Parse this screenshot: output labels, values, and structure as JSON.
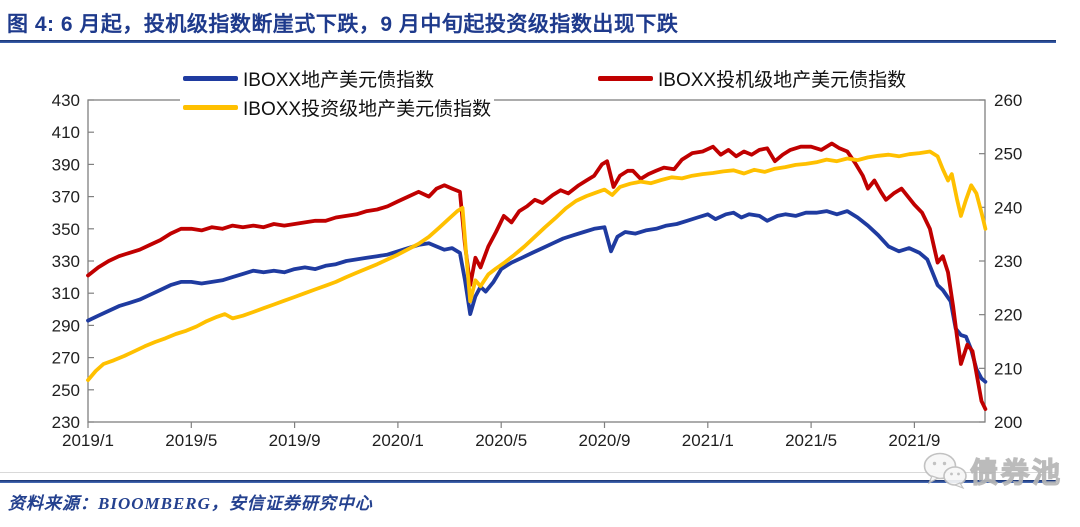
{
  "figure": {
    "title": "图 4: 6 月起，投机级指数断崖式下跌，9 月中旬起投资级指数出现下跌",
    "source": "资料来源：BIOOMBERG，安信证券研究中心",
    "watermark": "债券池"
  },
  "colors": {
    "accent_navy": "#1e3a8c",
    "line_blue": "#1f3ba0",
    "line_red": "#c00000",
    "line_yellow": "#ffc000",
    "axis_frame": "#808080",
    "axis_text": "#1f1f1f"
  },
  "chart_data": {
    "type": "line",
    "title": "",
    "xlabel": "",
    "ylabel_left": "",
    "ylabel_right": "",
    "legend_position": "top",
    "grid": false,
    "x_unit": "months since 2019/1 (x ticks every 4 months)",
    "x_ticks": [
      "2019/1",
      "2019/5",
      "2019/9",
      "2020/1",
      "2020/5",
      "2020/9",
      "2021/1",
      "2021/5",
      "2021/9"
    ],
    "left_axis": {
      "min": 230,
      "max": 430,
      "step": 20,
      "ticks": [
        430,
        410,
        390,
        370,
        350,
        330,
        310,
        290,
        270,
        250,
        230
      ]
    },
    "right_axis": {
      "min": 200,
      "max": 260,
      "step": 10,
      "ticks": [
        260,
        250,
        240,
        230,
        220,
        210,
        200
      ]
    },
    "series": [
      {
        "name": "IBOXX地产美元债指数",
        "color": "#1f3ba0",
        "axis": "left",
        "points": [
          [
            0,
            293
          ],
          [
            0.4,
            296
          ],
          [
            0.8,
            299
          ],
          [
            1.2,
            302
          ],
          [
            1.6,
            304
          ],
          [
            2,
            306
          ],
          [
            2.4,
            309
          ],
          [
            2.8,
            312
          ],
          [
            3.2,
            315
          ],
          [
            3.6,
            317
          ],
          [
            4,
            317
          ],
          [
            4.4,
            316
          ],
          [
            4.8,
            317
          ],
          [
            5.2,
            318
          ],
          [
            5.6,
            320
          ],
          [
            6,
            322
          ],
          [
            6.4,
            324
          ],
          [
            6.8,
            323
          ],
          [
            7.2,
            324
          ],
          [
            7.6,
            323
          ],
          [
            8,
            325
          ],
          [
            8.4,
            326
          ],
          [
            8.8,
            325
          ],
          [
            9.2,
            327
          ],
          [
            9.6,
            328
          ],
          [
            10,
            330
          ],
          [
            10.4,
            331
          ],
          [
            10.8,
            332
          ],
          [
            11.2,
            333
          ],
          [
            11.6,
            334
          ],
          [
            12,
            336
          ],
          [
            12.4,
            338
          ],
          [
            12.8,
            340
          ],
          [
            13.2,
            341
          ],
          [
            13.5,
            339
          ],
          [
            13.8,
            337
          ],
          [
            14.1,
            338
          ],
          [
            14.4,
            335
          ],
          [
            14.6,
            318
          ],
          [
            14.8,
            297
          ],
          [
            15,
            308
          ],
          [
            15.2,
            314
          ],
          [
            15.4,
            311
          ],
          [
            15.7,
            317
          ],
          [
            16,
            325
          ],
          [
            16.4,
            329
          ],
          [
            16.8,
            332
          ],
          [
            17.2,
            335
          ],
          [
            17.6,
            338
          ],
          [
            18,
            341
          ],
          [
            18.4,
            344
          ],
          [
            18.8,
            346
          ],
          [
            19.2,
            348
          ],
          [
            19.6,
            350
          ],
          [
            20,
            351
          ],
          [
            20.25,
            336
          ],
          [
            20.5,
            345
          ],
          [
            20.8,
            348
          ],
          [
            21.2,
            347
          ],
          [
            21.6,
            349
          ],
          [
            22,
            350
          ],
          [
            22.4,
            352
          ],
          [
            22.8,
            353
          ],
          [
            23.2,
            355
          ],
          [
            23.6,
            357
          ],
          [
            24,
            359
          ],
          [
            24.3,
            356
          ],
          [
            24.7,
            359
          ],
          [
            25,
            360
          ],
          [
            25.3,
            357
          ],
          [
            25.6,
            359
          ],
          [
            26,
            358
          ],
          [
            26.3,
            355
          ],
          [
            26.7,
            358
          ],
          [
            27,
            359
          ],
          [
            27.4,
            358
          ],
          [
            27.8,
            360
          ],
          [
            28.2,
            360
          ],
          [
            28.6,
            361
          ],
          [
            29,
            359
          ],
          [
            29.4,
            361
          ],
          [
            29.8,
            357
          ],
          [
            30.2,
            352
          ],
          [
            30.6,
            346
          ],
          [
            31,
            339
          ],
          [
            31.4,
            336
          ],
          [
            31.8,
            338
          ],
          [
            32.2,
            335
          ],
          [
            32.5,
            331
          ],
          [
            32.9,
            315
          ],
          [
            33.1,
            312
          ],
          [
            33.4,
            305
          ],
          [
            33.6,
            288
          ],
          [
            33.8,
            284
          ],
          [
            34,
            283
          ],
          [
            34.2,
            275
          ],
          [
            34.4,
            263
          ],
          [
            34.6,
            257
          ],
          [
            34.75,
            255
          ]
        ]
      },
      {
        "name": "IBOXX投机级地产美元债指数",
        "color": "#c00000",
        "axis": "left",
        "points": [
          [
            0,
            321
          ],
          [
            0.4,
            326
          ],
          [
            0.8,
            330
          ],
          [
            1.2,
            333
          ],
          [
            1.6,
            335
          ],
          [
            2,
            337
          ],
          [
            2.4,
            340
          ],
          [
            2.8,
            343
          ],
          [
            3.2,
            347
          ],
          [
            3.6,
            350
          ],
          [
            4,
            350
          ],
          [
            4.4,
            349
          ],
          [
            4.8,
            351
          ],
          [
            5.2,
            350
          ],
          [
            5.6,
            352
          ],
          [
            6,
            351
          ],
          [
            6.4,
            352
          ],
          [
            6.8,
            351
          ],
          [
            7.2,
            353
          ],
          [
            7.6,
            352
          ],
          [
            8,
            353
          ],
          [
            8.4,
            354
          ],
          [
            8.8,
            355
          ],
          [
            9.2,
            355
          ],
          [
            9.6,
            357
          ],
          [
            10,
            358
          ],
          [
            10.4,
            359
          ],
          [
            10.8,
            361
          ],
          [
            11.2,
            362
          ],
          [
            11.6,
            364
          ],
          [
            12,
            367
          ],
          [
            12.4,
            370
          ],
          [
            12.8,
            373
          ],
          [
            13.2,
            370
          ],
          [
            13.5,
            375
          ],
          [
            13.8,
            377
          ],
          [
            14.1,
            375
          ],
          [
            14.4,
            373
          ],
          [
            14.6,
            340
          ],
          [
            14.8,
            315
          ],
          [
            15,
            332
          ],
          [
            15.2,
            326
          ],
          [
            15.5,
            339
          ],
          [
            15.8,
            348
          ],
          [
            16.1,
            358
          ],
          [
            16.4,
            354
          ],
          [
            16.7,
            361
          ],
          [
            17,
            364
          ],
          [
            17.3,
            368
          ],
          [
            17.6,
            366
          ],
          [
            18,
            371
          ],
          [
            18.3,
            374
          ],
          [
            18.6,
            372
          ],
          [
            19,
            377
          ],
          [
            19.3,
            380
          ],
          [
            19.6,
            383
          ],
          [
            19.9,
            390
          ],
          [
            20.1,
            392
          ],
          [
            20.35,
            376
          ],
          [
            20.6,
            383
          ],
          [
            20.9,
            386
          ],
          [
            21.1,
            386
          ],
          [
            21.4,
            381
          ],
          [
            21.7,
            384
          ],
          [
            22,
            386
          ],
          [
            22.3,
            388
          ],
          [
            22.7,
            387
          ],
          [
            23,
            393
          ],
          [
            23.4,
            397
          ],
          [
            23.8,
            398
          ],
          [
            24.2,
            401
          ],
          [
            24.5,
            396
          ],
          [
            24.8,
            399
          ],
          [
            25.1,
            395
          ],
          [
            25.4,
            398
          ],
          [
            25.7,
            396
          ],
          [
            26,
            399
          ],
          [
            26.3,
            400
          ],
          [
            26.6,
            392
          ],
          [
            26.9,
            396
          ],
          [
            27.2,
            399
          ],
          [
            27.6,
            401
          ],
          [
            28,
            401
          ],
          [
            28.4,
            399
          ],
          [
            28.8,
            403
          ],
          [
            29.1,
            400
          ],
          [
            29.4,
            398
          ],
          [
            29.7,
            391
          ],
          [
            30,
            383
          ],
          [
            30.2,
            375
          ],
          [
            30.45,
            380
          ],
          [
            30.7,
            373
          ],
          [
            30.9,
            368
          ],
          [
            31.2,
            372
          ],
          [
            31.5,
            375
          ],
          [
            31.8,
            369
          ],
          [
            32,
            365
          ],
          [
            32.3,
            360
          ],
          [
            32.6,
            350
          ],
          [
            32.9,
            329
          ],
          [
            33.1,
            333
          ],
          [
            33.3,
            323
          ],
          [
            33.5,
            302
          ],
          [
            33.65,
            283
          ],
          [
            33.8,
            266
          ],
          [
            34.05,
            278
          ],
          [
            34.25,
            274
          ],
          [
            34.45,
            256
          ],
          [
            34.6,
            243
          ],
          [
            34.75,
            238
          ]
        ]
      },
      {
        "name": "IBOXX投资级地产美元债指数",
        "color": "#ffc000",
        "axis": "right",
        "points": [
          [
            0,
            207.8
          ],
          [
            0.3,
            209.5
          ],
          [
            0.6,
            210.8
          ],
          [
            1,
            211.5
          ],
          [
            1.4,
            212.3
          ],
          [
            1.8,
            213.2
          ],
          [
            2.2,
            214.1
          ],
          [
            2.6,
            214.9
          ],
          [
            3,
            215.6
          ],
          [
            3.4,
            216.4
          ],
          [
            3.8,
            217
          ],
          [
            4.2,
            217.8
          ],
          [
            4.6,
            218.8
          ],
          [
            5,
            219.6
          ],
          [
            5.3,
            220.1
          ],
          [
            5.6,
            219.3
          ],
          [
            6,
            219.8
          ],
          [
            6.4,
            220.5
          ],
          [
            6.8,
            221.2
          ],
          [
            7.2,
            221.9
          ],
          [
            7.6,
            222.6
          ],
          [
            8,
            223.3
          ],
          [
            8.4,
            224
          ],
          [
            8.8,
            224.7
          ],
          [
            9.2,
            225.4
          ],
          [
            9.6,
            226.1
          ],
          [
            10,
            227
          ],
          [
            10.4,
            227.8
          ],
          [
            10.8,
            228.6
          ],
          [
            11.2,
            229.4
          ],
          [
            11.6,
            230.3
          ],
          [
            12,
            231.2
          ],
          [
            12.4,
            232.2
          ],
          [
            12.8,
            233.2
          ],
          [
            13.2,
            234.5
          ],
          [
            13.6,
            236.2
          ],
          [
            14,
            238
          ],
          [
            14.3,
            239.3
          ],
          [
            14.5,
            239.9
          ],
          [
            14.65,
            231
          ],
          [
            14.8,
            222.5
          ],
          [
            15,
            226.4
          ],
          [
            15.2,
            225.3
          ],
          [
            15.5,
            227.5
          ],
          [
            15.8,
            228.6
          ],
          [
            16.1,
            229.6
          ],
          [
            16.5,
            231.1
          ],
          [
            16.9,
            232.7
          ],
          [
            17.3,
            234.5
          ],
          [
            17.7,
            236.3
          ],
          [
            18.1,
            238
          ],
          [
            18.5,
            239.8
          ],
          [
            18.9,
            241.2
          ],
          [
            19.3,
            242.1
          ],
          [
            19.7,
            242.8
          ],
          [
            20,
            243.3
          ],
          [
            20.3,
            242.3
          ],
          [
            20.6,
            243.8
          ],
          [
            21,
            244.4
          ],
          [
            21.4,
            244.8
          ],
          [
            21.8,
            244.5
          ],
          [
            22.2,
            245.1
          ],
          [
            22.6,
            245.6
          ],
          [
            23,
            245.4
          ],
          [
            23.4,
            245.9
          ],
          [
            23.8,
            246.2
          ],
          [
            24.2,
            246.4
          ],
          [
            24.6,
            246.7
          ],
          [
            25,
            246.9
          ],
          [
            25.4,
            246.3
          ],
          [
            25.8,
            247
          ],
          [
            26.2,
            246.6
          ],
          [
            26.6,
            247.2
          ],
          [
            27,
            247.5
          ],
          [
            27.4,
            247.9
          ],
          [
            27.8,
            248.1
          ],
          [
            28.2,
            248.4
          ],
          [
            28.6,
            248.9
          ],
          [
            29,
            248.6
          ],
          [
            29.4,
            249.1
          ],
          [
            29.8,
            248.8
          ],
          [
            30.2,
            249.3
          ],
          [
            30.6,
            249.6
          ],
          [
            31,
            249.8
          ],
          [
            31.4,
            249.5
          ],
          [
            31.8,
            249.9
          ],
          [
            32.2,
            250.1
          ],
          [
            32.6,
            250.4
          ],
          [
            32.9,
            249.5
          ],
          [
            33.1,
            247.1
          ],
          [
            33.3,
            245
          ],
          [
            33.45,
            246.2
          ],
          [
            33.65,
            241.5
          ],
          [
            33.8,
            238.4
          ],
          [
            34,
            241.4
          ],
          [
            34.2,
            244.1
          ],
          [
            34.4,
            242.6
          ],
          [
            34.6,
            239
          ],
          [
            34.75,
            236
          ]
        ]
      }
    ]
  }
}
